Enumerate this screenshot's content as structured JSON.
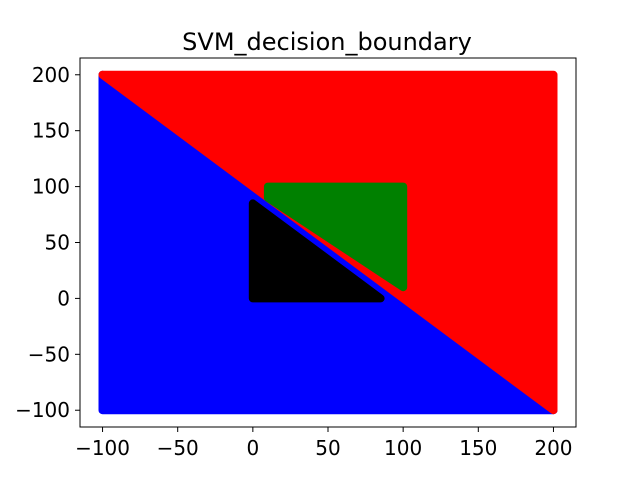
{
  "chart_data": {
    "type": "scatter",
    "title": "SVM_decision_boundary",
    "xlabel": "",
    "ylabel": "",
    "xlim": [
      -115,
      215
    ],
    "ylim": [
      -115,
      215
    ],
    "xticks": [
      -100,
      -50,
      0,
      50,
      100,
      150,
      200
    ],
    "yticks": [
      -100,
      -50,
      0,
      50,
      100,
      150,
      200
    ],
    "xtick_labels": [
      "−100",
      "−50",
      "0",
      "50",
      "100",
      "150",
      "200"
    ],
    "ytick_labels": [
      "−100",
      "−50",
      "0",
      "50",
      "100",
      "150",
      "200"
    ],
    "grid": false,
    "series": [
      {
        "color": "#0000ff",
        "description_region": "below line x + y = 100 within [-100,200] square",
        "polygon": [
          [
            -100,
            200
          ],
          [
            -100,
            -100
          ],
          [
            200,
            -100
          ]
        ]
      },
      {
        "color": "#ff0000",
        "description_region": "above line x + y = 100 within [-100,200] square",
        "polygon": [
          [
            -100,
            200
          ],
          [
            200,
            200
          ],
          [
            200,
            -100
          ]
        ]
      },
      {
        "color": "#008000",
        "description_region": "rectangle x 10-100, y 10-100 above diagonal",
        "polygon": [
          [
            10,
            90
          ],
          [
            10,
            100
          ],
          [
            100,
            100
          ],
          [
            100,
            10
          ]
        ]
      },
      {
        "color": "#000000",
        "description_region": "triangle below diagonal inside first quadrant",
        "polygon": [
          [
            0,
            0
          ],
          [
            0,
            85
          ],
          [
            85,
            0
          ]
        ]
      }
    ]
  }
}
